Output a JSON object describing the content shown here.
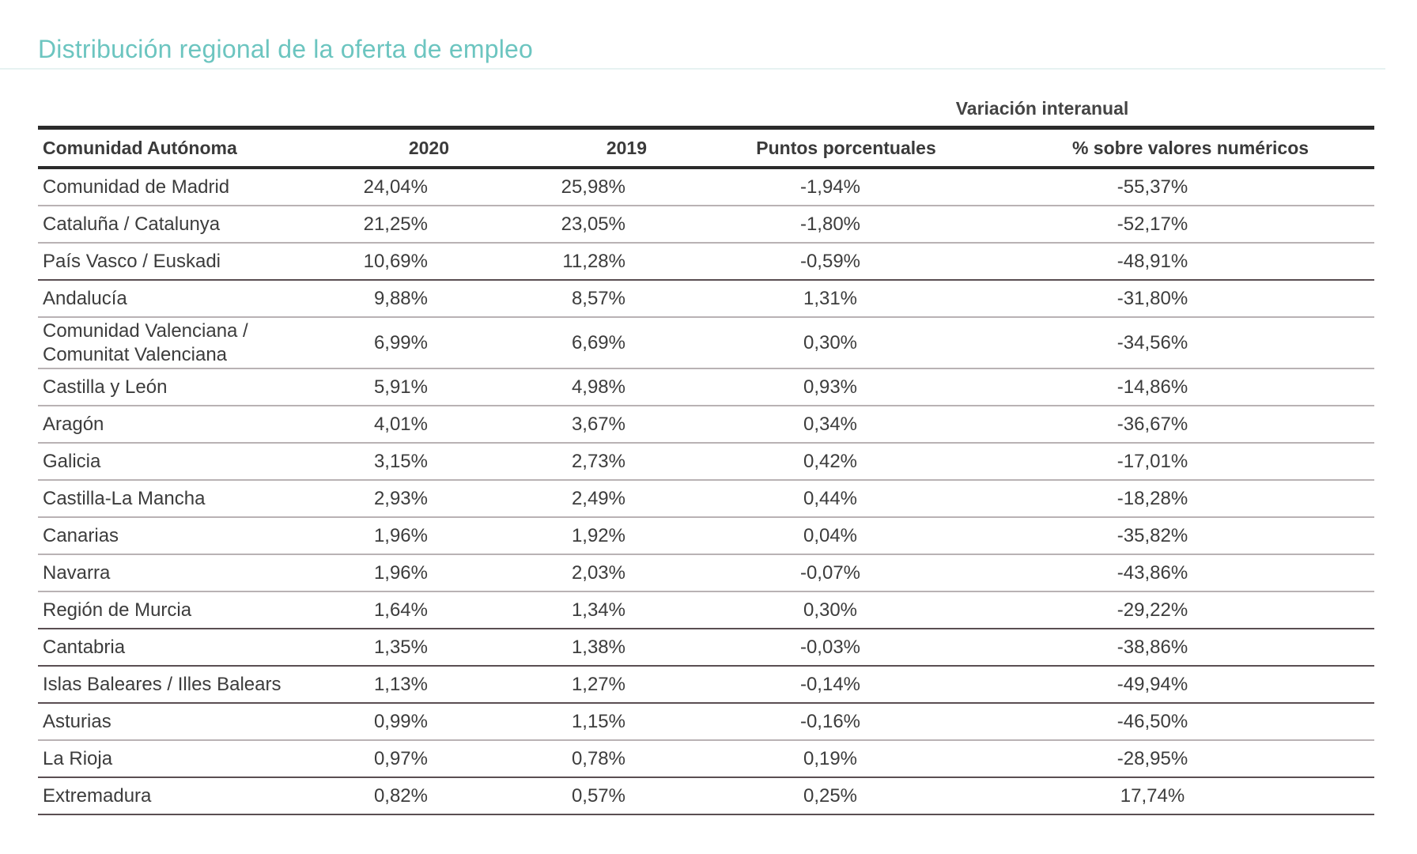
{
  "title": "Distribución regional de la oferta de empleo",
  "group_header": "Variación interanual",
  "columns": {
    "region": "Comunidad Autónoma",
    "y2020": "2020",
    "y2019": "2019",
    "pp": "Puntos porcentuales",
    "pct": "% sobre valores numéricos"
  },
  "rows": [
    {
      "region": "Comunidad de Madrid",
      "y2020": "24,04%",
      "y2019": "25,98%",
      "pp": "-1,94%",
      "pct": "-55,37%"
    },
    {
      "region": "Cataluña / Catalunya",
      "y2020": "21,25%",
      "y2019": "23,05%",
      "pp": "-1,80%",
      "pct": "-52,17%"
    },
    {
      "region": "País Vasco / Euskadi",
      "y2020": "10,69%",
      "y2019": "11,28%",
      "pp": "-0,59%",
      "pct": "-48,91%"
    },
    {
      "region": "Andalucía",
      "y2020": "9,88%",
      "y2019": "8,57%",
      "pp": "1,31%",
      "pct": "-31,80%"
    },
    {
      "region": "Comunidad Valenciana / Comunitat Valenciana",
      "y2020": "6,99%",
      "y2019": "6,69%",
      "pp": "0,30%",
      "pct": "-34,56%"
    },
    {
      "region": "Castilla y León",
      "y2020": "5,91%",
      "y2019": "4,98%",
      "pp": "0,93%",
      "pct": "-14,86%"
    },
    {
      "region": "Aragón",
      "y2020": "4,01%",
      "y2019": "3,67%",
      "pp": "0,34%",
      "pct": "-36,67%"
    },
    {
      "region": "Galicia",
      "y2020": "3,15%",
      "y2019": "2,73%",
      "pp": "0,42%",
      "pct": "-17,01%"
    },
    {
      "region": "Castilla-La Mancha",
      "y2020": "2,93%",
      "y2019": "2,49%",
      "pp": "0,44%",
      "pct": "-18,28%"
    },
    {
      "region": "Canarias",
      "y2020": "1,96%",
      "y2019": "1,92%",
      "pp": "0,04%",
      "pct": "-35,82%"
    },
    {
      "region": "Navarra",
      "y2020": "1,96%",
      "y2019": "2,03%",
      "pp": "-0,07%",
      "pct": "-43,86%"
    },
    {
      "region": "Región de Murcia",
      "y2020": "1,64%",
      "y2019": "1,34%",
      "pp": "0,30%",
      "pct": "-29,22%"
    },
    {
      "region": "Cantabria",
      "y2020": "1,35%",
      "y2019": "1,38%",
      "pp": "-0,03%",
      "pct": "-38,86%"
    },
    {
      "region": "Islas Baleares / Illes Balears",
      "y2020": "1,13%",
      "y2019": "1,27%",
      "pp": "-0,14%",
      "pct": "-49,94%"
    },
    {
      "region": "Asturias",
      "y2020": "0,99%",
      "y2019": "1,15%",
      "pp": "-0,16%",
      "pct": "-46,50%"
    },
    {
      "region": "La Rioja",
      "y2020": "0,97%",
      "y2019": "0,78%",
      "pp": "0,19%",
      "pct": "-28,95%"
    },
    {
      "region": "Extremadura",
      "y2020": "0,82%",
      "y2019": "0,57%",
      "pp": "0,25%",
      "pct": "17,74%"
    }
  ],
  "colors": {
    "title": "#6cc5c0",
    "rule_dark": "#2b2b2b",
    "row_separator": "#b9b2b4",
    "row_separator_strong": "#5a4e52"
  }
}
